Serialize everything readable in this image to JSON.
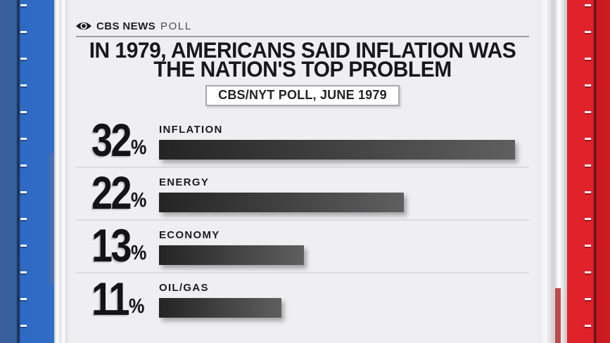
{
  "brand": {
    "name": "CBS NEWS",
    "suffix": "POLL"
  },
  "title": {
    "line1": "IN 1979, AMERICANS SAID INFLATION WAS",
    "line2": "THE NATION'S TOP PROBLEM"
  },
  "badge": {
    "label": "CBS/NYT POLL, JUNE 1979"
  },
  "chart_data": {
    "type": "bar",
    "orientation": "horizontal",
    "title": "IN 1979, AMERICANS SAID INFLATION WAS THE NATION'S TOP PROBLEM",
    "source_label": "CBS/NYT POLL, JUNE 1979",
    "categories": [
      "INFLATION",
      "ENERGY",
      "ECONOMY",
      "OIL/GAS"
    ],
    "values": [
      32,
      22,
      13,
      11
    ],
    "unit": "%",
    "xlim": [
      0,
      32
    ],
    "grid": false,
    "legend": "none",
    "bar_gradient": [
      "#242424",
      "#5f5f5f"
    ]
  },
  "colors": {
    "frame_left_blue": "#2f6ac5",
    "frame_right_red": "#e0222a",
    "card_background": "#efeff1",
    "bar_dark": "#242424",
    "bar_light": "#5f5f5f"
  }
}
